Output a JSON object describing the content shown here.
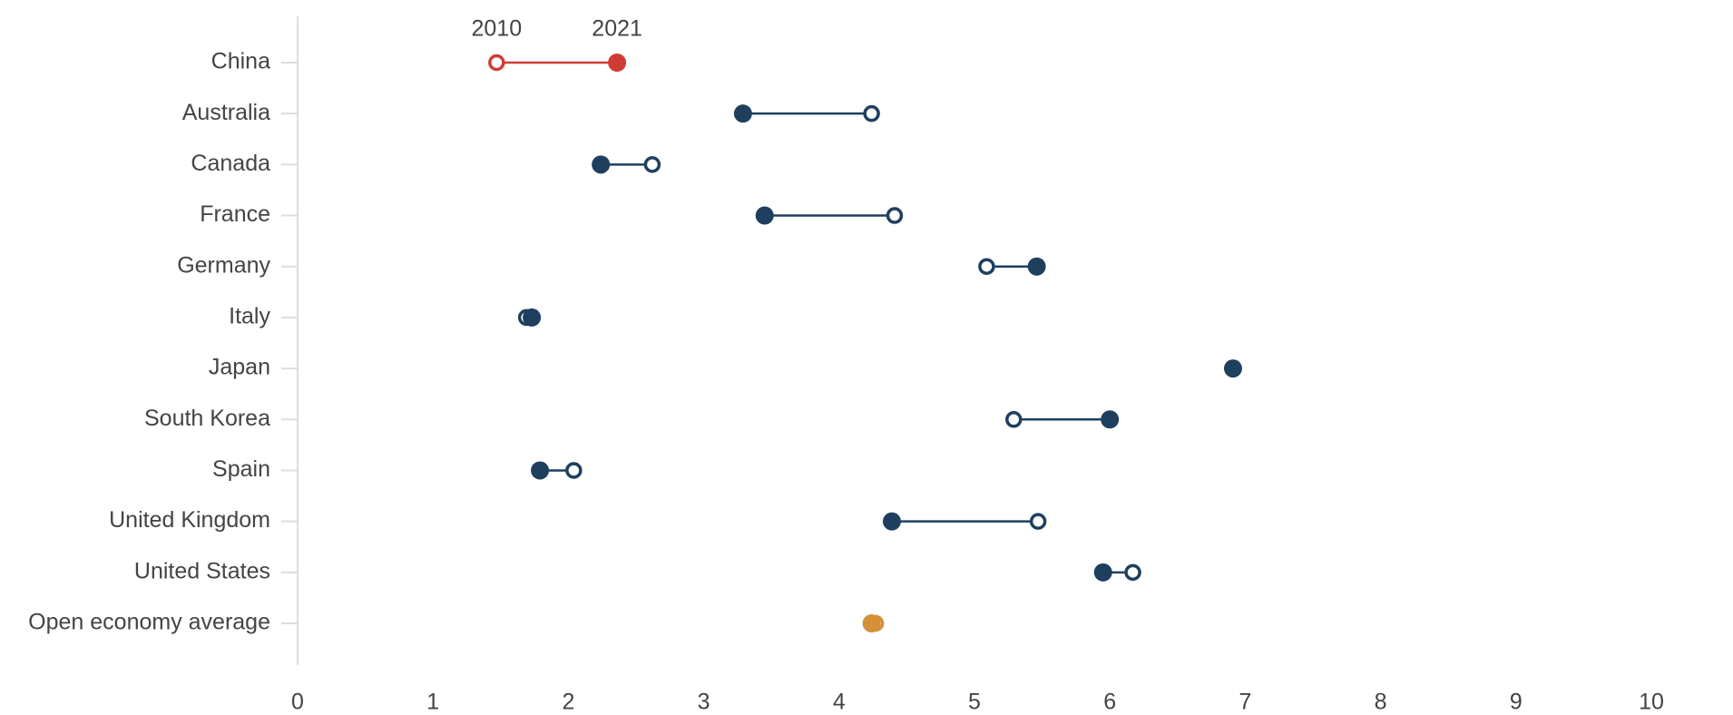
{
  "chart_data": {
    "type": "dumbbell",
    "categories": [
      "China",
      "Australia",
      "Canada",
      "France",
      "Germany",
      "Italy",
      "Japan",
      "South Korea",
      "Spain",
      "United Kingdom",
      "United States",
      "Open economy average"
    ],
    "category_colors": [
      "#d13b36",
      "#1f3f5f",
      "#1f3f5f",
      "#1f3f5f",
      "#1f3f5f",
      "#1f3f5f",
      "#1f3f5f",
      "#1f3f5f",
      "#1f3f5f",
      "#1f3f5f",
      "#1f3f5f",
      "#d4913a"
    ],
    "series": [
      {
        "name": "2010",
        "marker": "open",
        "values": [
          1.47,
          4.24,
          2.62,
          4.41,
          5.09,
          1.69,
          6.91,
          5.29,
          2.04,
          5.47,
          6.17,
          4.27
        ]
      },
      {
        "name": "2021",
        "marker": "filled",
        "values": [
          2.36,
          3.29,
          2.24,
          3.45,
          5.46,
          1.73,
          6.91,
          6.0,
          1.79,
          4.39,
          5.95,
          4.24
        ]
      }
    ],
    "xlim": [
      0,
      10
    ],
    "xticks": [
      0,
      1,
      2,
      3,
      4,
      5,
      6,
      7,
      8,
      9,
      10
    ]
  }
}
